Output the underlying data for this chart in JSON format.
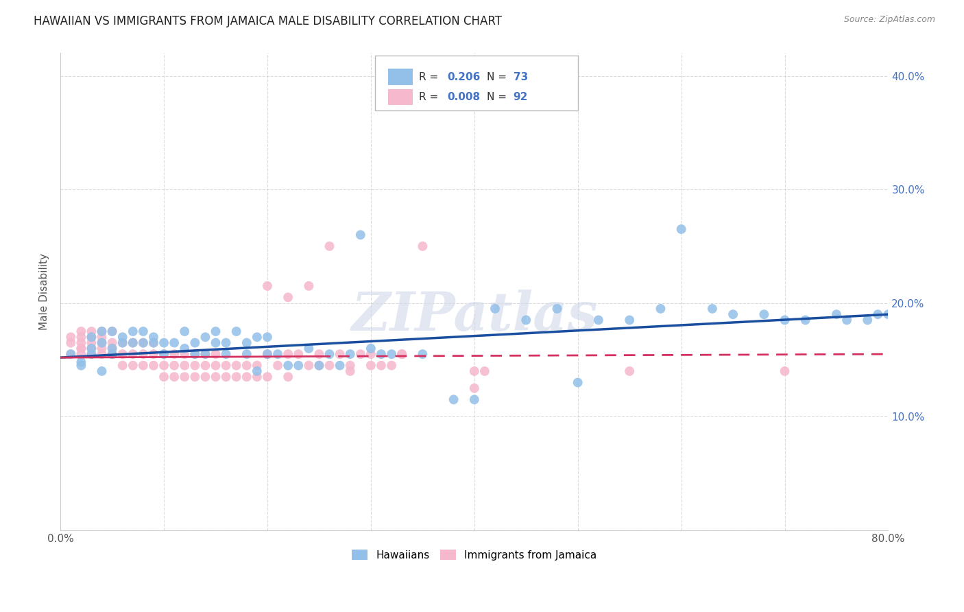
{
  "title": "HAWAIIAN VS IMMIGRANTS FROM JAMAICA MALE DISABILITY CORRELATION CHART",
  "source": "Source: ZipAtlas.com",
  "ylabel": "Male Disability",
  "xlim": [
    0.0,
    0.8
  ],
  "ylim": [
    0.0,
    0.42
  ],
  "xticks": [
    0.0,
    0.1,
    0.2,
    0.3,
    0.4,
    0.5,
    0.6,
    0.7,
    0.8
  ],
  "yticks": [
    0.0,
    0.1,
    0.2,
    0.3,
    0.4
  ],
  "yticklabels": [
    "",
    "10.0%",
    "20.0%",
    "30.0%",
    "40.0%"
  ],
  "hawaii_R": 0.206,
  "hawaii_N": 73,
  "jamaica_R": 0.008,
  "jamaica_N": 92,
  "hawaii_color": "#92c0e8",
  "hawaii_line_color": "#1a4fa0",
  "jamaica_color": "#f5b8cc",
  "jamaica_line_color": "#d43060",
  "background_color": "#ffffff",
  "grid_color": "#cccccc",
  "watermark": "ZIPatlas",
  "hawaii_scatter_x": [
    0.01,
    0.02,
    0.02,
    0.03,
    0.03,
    0.03,
    0.04,
    0.04,
    0.04,
    0.05,
    0.05,
    0.05,
    0.06,
    0.06,
    0.07,
    0.07,
    0.08,
    0.08,
    0.09,
    0.09,
    0.1,
    0.1,
    0.11,
    0.12,
    0.12,
    0.13,
    0.13,
    0.14,
    0.14,
    0.15,
    0.15,
    0.16,
    0.16,
    0.17,
    0.18,
    0.18,
    0.19,
    0.19,
    0.2,
    0.2,
    0.21,
    0.22,
    0.23,
    0.24,
    0.25,
    0.26,
    0.27,
    0.28,
    0.29,
    0.3,
    0.31,
    0.32,
    0.35,
    0.38,
    0.4,
    0.42,
    0.45,
    0.48,
    0.5,
    0.52,
    0.55,
    0.58,
    0.6,
    0.63,
    0.65,
    0.68,
    0.7,
    0.72,
    0.75,
    0.76,
    0.78,
    0.79,
    0.8
  ],
  "hawaii_scatter_y": [
    0.155,
    0.145,
    0.148,
    0.155,
    0.16,
    0.17,
    0.14,
    0.165,
    0.175,
    0.155,
    0.16,
    0.175,
    0.17,
    0.165,
    0.175,
    0.165,
    0.175,
    0.165,
    0.17,
    0.165,
    0.155,
    0.165,
    0.165,
    0.16,
    0.175,
    0.155,
    0.165,
    0.155,
    0.17,
    0.165,
    0.175,
    0.155,
    0.165,
    0.175,
    0.155,
    0.165,
    0.14,
    0.17,
    0.155,
    0.17,
    0.155,
    0.145,
    0.145,
    0.16,
    0.145,
    0.155,
    0.145,
    0.155,
    0.26,
    0.16,
    0.155,
    0.155,
    0.155,
    0.115,
    0.115,
    0.195,
    0.185,
    0.195,
    0.13,
    0.185,
    0.185,
    0.195,
    0.265,
    0.195,
    0.19,
    0.19,
    0.185,
    0.185,
    0.19,
    0.185,
    0.185,
    0.19,
    0.19
  ],
  "jamaica_scatter_x": [
    0.01,
    0.01,
    0.01,
    0.02,
    0.02,
    0.02,
    0.02,
    0.02,
    0.02,
    0.03,
    0.03,
    0.03,
    0.03,
    0.03,
    0.04,
    0.04,
    0.04,
    0.04,
    0.04,
    0.05,
    0.05,
    0.05,
    0.05,
    0.05,
    0.06,
    0.06,
    0.06,
    0.07,
    0.07,
    0.07,
    0.08,
    0.08,
    0.08,
    0.09,
    0.09,
    0.09,
    0.1,
    0.1,
    0.1,
    0.11,
    0.11,
    0.11,
    0.12,
    0.12,
    0.12,
    0.13,
    0.13,
    0.13,
    0.14,
    0.14,
    0.14,
    0.15,
    0.15,
    0.15,
    0.16,
    0.16,
    0.17,
    0.17,
    0.18,
    0.18,
    0.19,
    0.19,
    0.2,
    0.2,
    0.21,
    0.22,
    0.22,
    0.23,
    0.24,
    0.25,
    0.25,
    0.26,
    0.27,
    0.28,
    0.29,
    0.3,
    0.3,
    0.31,
    0.32,
    0.33,
    0.33,
    0.35,
    0.2,
    0.22,
    0.24,
    0.26,
    0.28,
    0.4,
    0.4,
    0.41,
    0.55,
    0.7
  ],
  "jamaica_scatter_y": [
    0.155,
    0.165,
    0.17,
    0.16,
    0.165,
    0.17,
    0.175,
    0.16,
    0.155,
    0.155,
    0.16,
    0.165,
    0.17,
    0.175,
    0.155,
    0.16,
    0.165,
    0.17,
    0.175,
    0.155,
    0.16,
    0.165,
    0.155,
    0.175,
    0.145,
    0.155,
    0.165,
    0.145,
    0.155,
    0.165,
    0.145,
    0.155,
    0.165,
    0.145,
    0.155,
    0.165,
    0.135,
    0.145,
    0.155,
    0.135,
    0.145,
    0.155,
    0.135,
    0.145,
    0.155,
    0.135,
    0.145,
    0.155,
    0.135,
    0.145,
    0.155,
    0.135,
    0.145,
    0.155,
    0.135,
    0.145,
    0.135,
    0.145,
    0.135,
    0.145,
    0.135,
    0.145,
    0.135,
    0.155,
    0.145,
    0.135,
    0.155,
    0.155,
    0.145,
    0.145,
    0.155,
    0.145,
    0.155,
    0.145,
    0.155,
    0.145,
    0.155,
    0.145,
    0.145,
    0.155,
    0.155,
    0.25,
    0.215,
    0.205,
    0.215,
    0.25,
    0.14,
    0.125,
    0.14,
    0.14,
    0.14,
    0.14
  ]
}
